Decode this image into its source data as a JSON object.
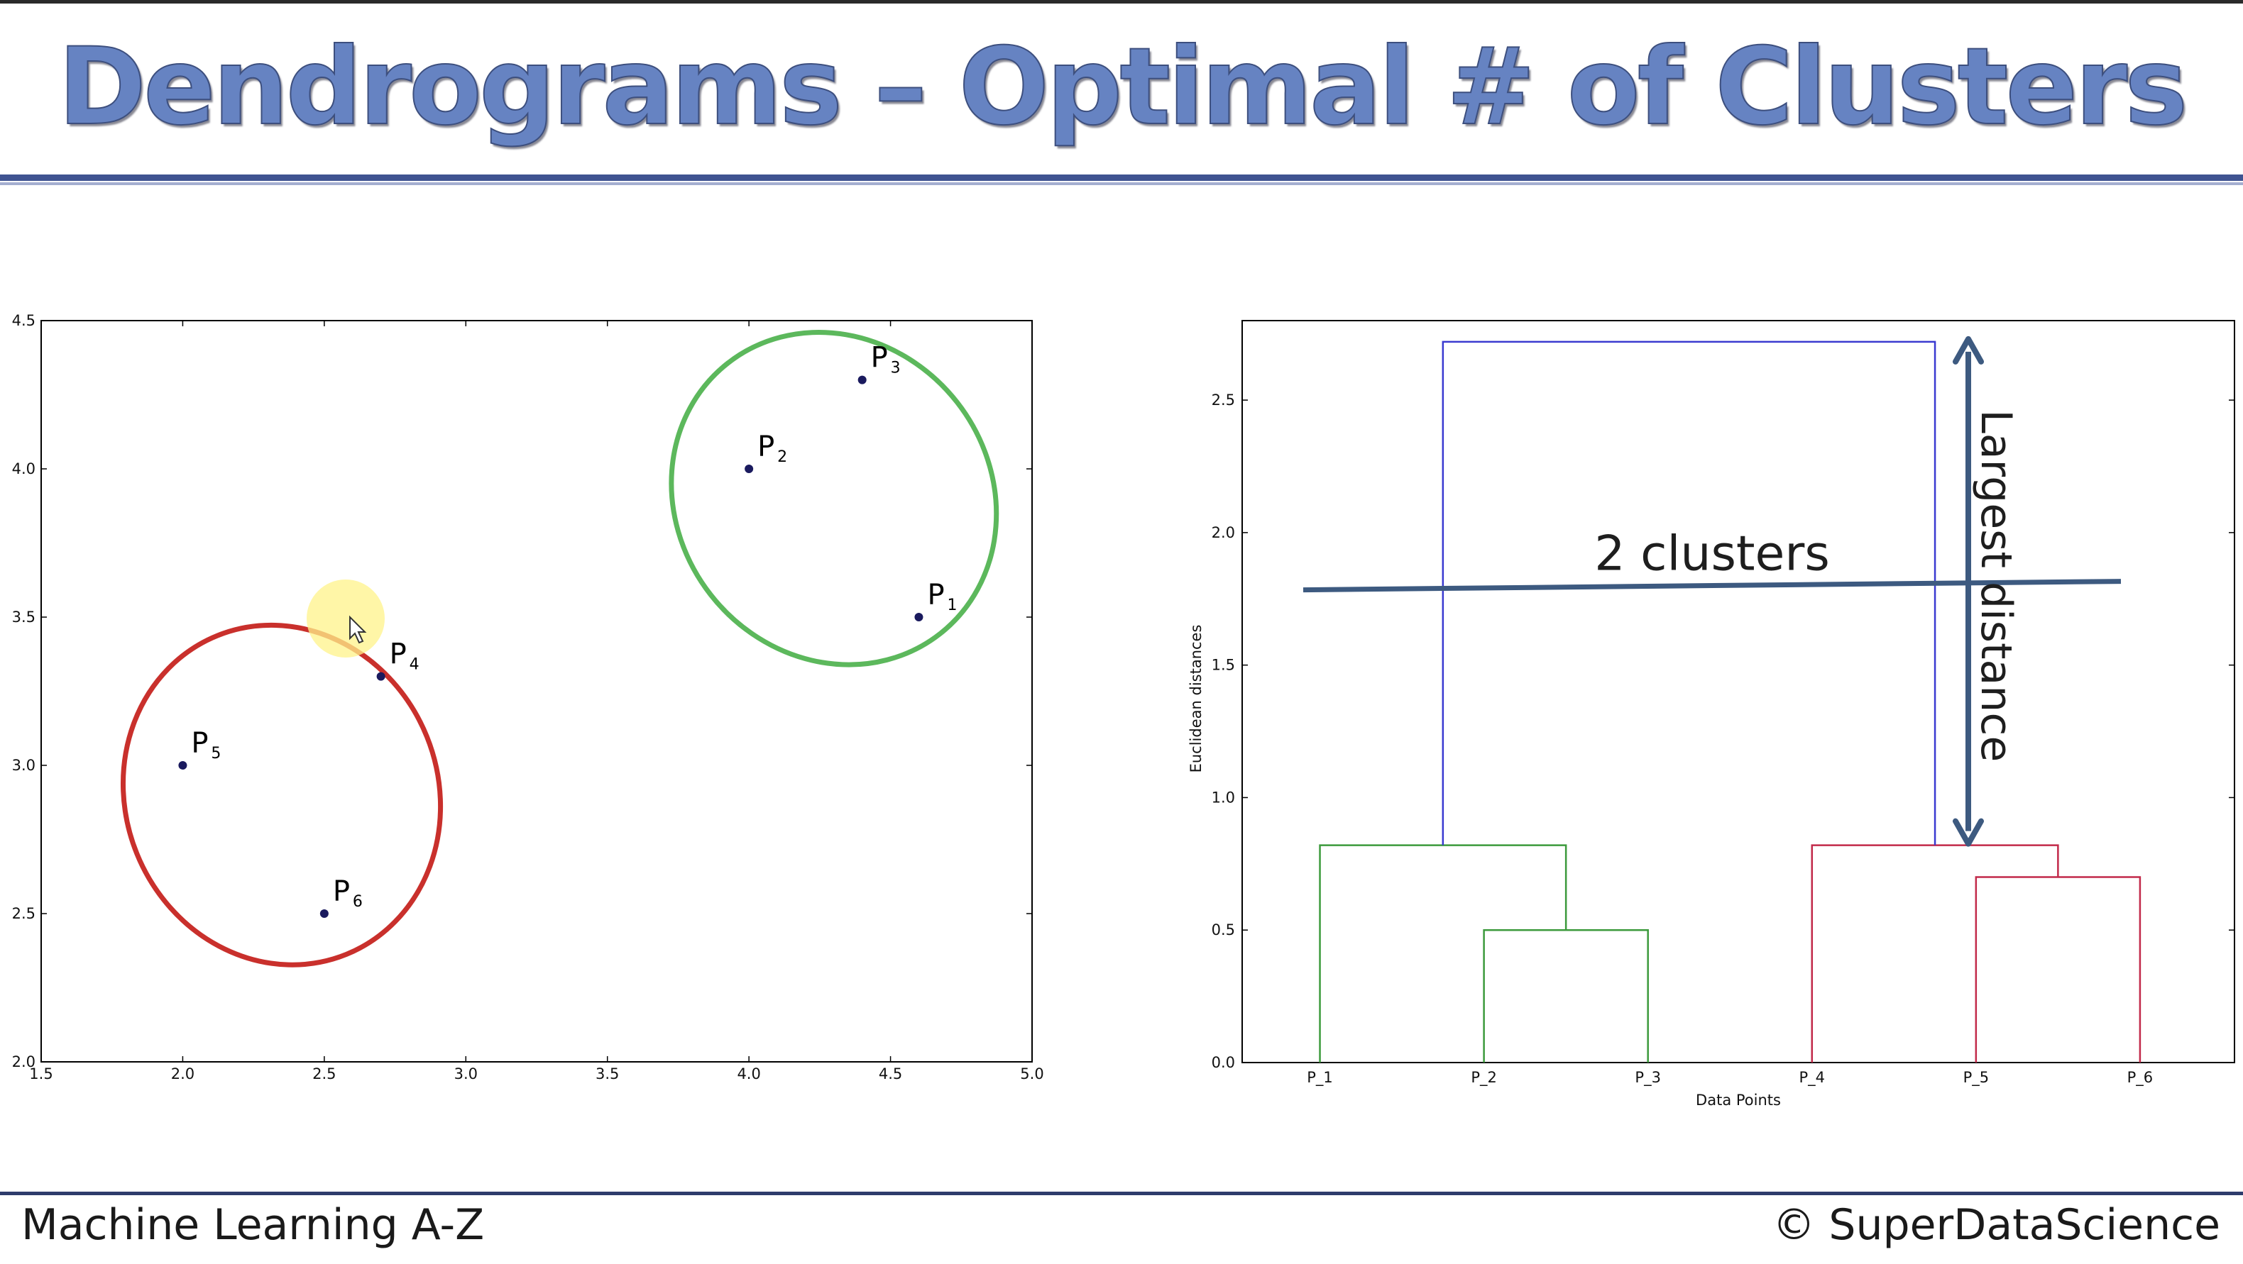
{
  "slide": {
    "title": "Dendrograms – Optimal # of Clusters",
    "footer_left": "Machine Learning A-Z",
    "footer_right": "© SuperDataScience"
  },
  "chart_data": [
    {
      "type": "scatter",
      "title": "",
      "xlabel": "",
      "ylabel": "",
      "xlim": [
        1.5,
        5.0
      ],
      "ylim": [
        2.0,
        4.5
      ],
      "x_ticks": [
        "1.5",
        "2.0",
        "2.5",
        "3.0",
        "3.5",
        "4.0",
        "4.5",
        "5.0"
      ],
      "y_ticks": [
        "2.0",
        "2.5",
        "3.0",
        "3.5",
        "4.0",
        "4.5"
      ],
      "points": [
        {
          "label": "P",
          "sub": "1",
          "x": 4.6,
          "y": 3.5
        },
        {
          "label": "P",
          "sub": "2",
          "x": 4.0,
          "y": 4.0
        },
        {
          "label": "P",
          "sub": "3",
          "x": 4.4,
          "y": 4.3
        },
        {
          "label": "P",
          "sub": "4",
          "x": 2.7,
          "y": 3.3
        },
        {
          "label": "P",
          "sub": "5",
          "x": 2.0,
          "y": 3.0
        },
        {
          "label": "P",
          "sub": "6",
          "x": 2.5,
          "y": 2.5
        }
      ],
      "clusters": [
        {
          "members": [
            "P1",
            "P2",
            "P3"
          ],
          "color": "#5cb85c"
        },
        {
          "members": [
            "P4",
            "P5",
            "P6"
          ],
          "color": "#c9302c"
        }
      ],
      "point_color": "#1a1a5e"
    },
    {
      "type": "dendrogram",
      "title": "",
      "xlabel": "Data Points",
      "ylabel": "Euclidean distances",
      "ylim": [
        0.0,
        2.8
      ],
      "y_ticks": [
        "0.0",
        "0.5",
        "1.0",
        "1.5",
        "2.0",
        "2.5"
      ],
      "leaves": [
        "P_1",
        "P_2",
        "P_3",
        "P_4",
        "P_5",
        "P_6"
      ],
      "merges": [
        {
          "left": "P_2",
          "right": "P_3",
          "height": 0.5,
          "color": "#3c9a3c"
        },
        {
          "left": "P_1",
          "right": "P_2+P_3",
          "height": 0.82,
          "color": "#3c9a3c"
        },
        {
          "left": "P_5",
          "right": "P_6",
          "height": 0.7,
          "color": "#c22a4a"
        },
        {
          "left": "P_4",
          "right": "P_5+P_6",
          "height": 0.82,
          "color": "#c22a4a"
        },
        {
          "left": "cluster_1",
          "right": "cluster_2",
          "height": 2.72,
          "color": "#3a3ad0"
        }
      ],
      "threshold": {
        "height": 1.8,
        "label": "2 clusters",
        "color": "#3d5a80"
      },
      "largest_distance": {
        "from": 0.82,
        "to": 2.72,
        "label": "Largest distance",
        "color": "#3d5a80"
      }
    }
  ]
}
